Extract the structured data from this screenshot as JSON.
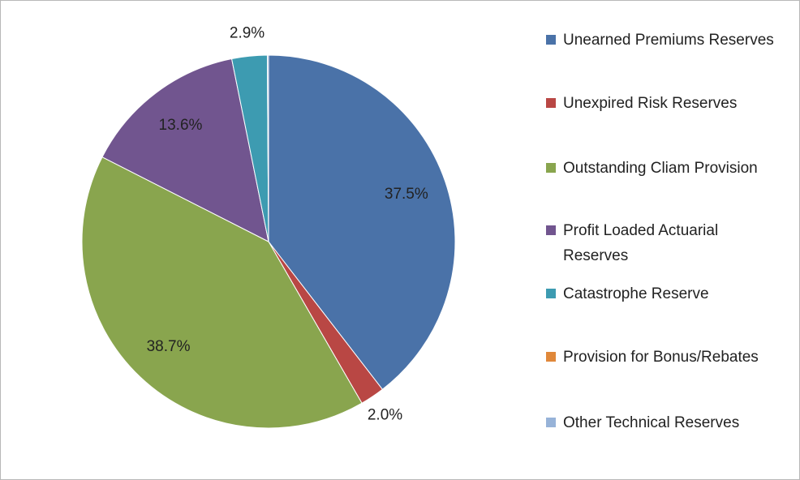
{
  "chart_data": {
    "type": "pie",
    "categories": [
      "Unearned Premiums Reserves",
      "Unexpired Risk Reserves",
      "Outstanding Cliam Provision",
      "Profit Loaded Actuarial Reserves",
      "Catastrophe Reserve",
      "Provision for Bonus/Rebates",
      "Other Technical Reserves"
    ],
    "values": [
      37.5,
      2.0,
      38.7,
      13.6,
      2.9,
      0,
      0.1
    ],
    "value_labels": [
      "37.5%",
      "2.0%",
      "38.7%",
      "13.6%",
      "2.9%",
      null,
      null
    ],
    "colors": [
      "#4a72a8",
      "#b94744",
      "#89a54e",
      "#71558f",
      "#3d9bb1",
      "#e0883a",
      "#97b3d8"
    ],
    "legend": "right"
  }
}
